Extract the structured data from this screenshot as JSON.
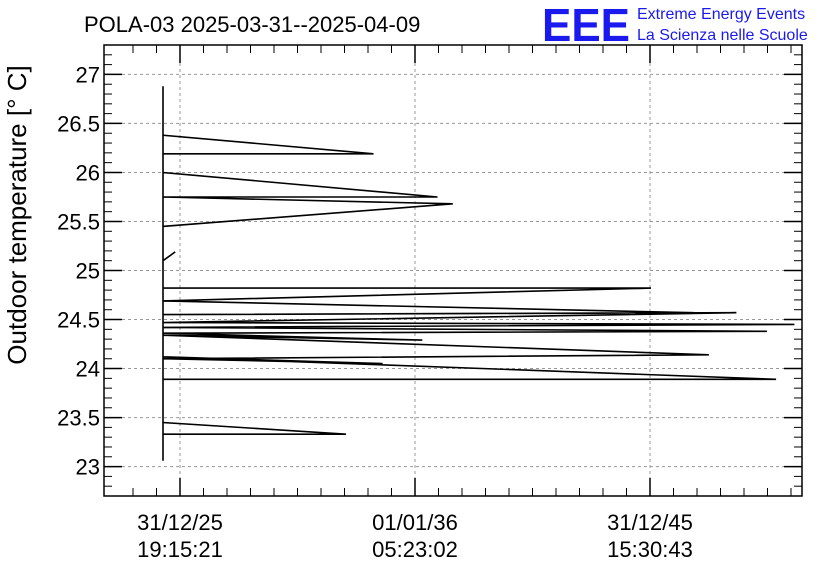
{
  "chart_data": {
    "type": "line",
    "title": "POLA-03 2025-03-31--2025-04-09",
    "ylabel": "Outdoor temperature [° C]",
    "xlabel": "",
    "ylim": [
      22.7,
      27.3
    ],
    "yticks": [
      23,
      23.5,
      24,
      24.5,
      25,
      25.5,
      26,
      26.5,
      27
    ],
    "ytick_labels": [
      "23",
      "23.5",
      "24",
      "24.5",
      "25",
      "25.5",
      "26",
      "26.5",
      "27"
    ],
    "xticks": [
      {
        "date": "31/12/25",
        "time": "19:15:21"
      },
      {
        "date": "01/01/36",
        "time": "05:23:02"
      },
      {
        "date": "31/12/45",
        "time": "15:30:43"
      }
    ],
    "grid": true,
    "series": [
      {
        "color": "#000000",
        "points": [
          [
            0.0,
            26.88
          ],
          [
            0.0,
            23.06
          ],
          [
            0.0,
            26.55
          ],
          [
            0.0,
            23.1
          ],
          [
            0.0,
            26.38
          ],
          [
            6.9,
            26.19
          ],
          [
            0.0,
            26.19
          ],
          [
            0.0,
            26.0
          ],
          [
            9.0,
            25.75
          ],
          [
            0.0,
            25.75
          ],
          [
            9.5,
            25.68
          ],
          [
            0.0,
            25.45
          ],
          [
            0.0,
            25.1
          ],
          [
            0.4,
            25.19
          ],
          [
            0.0,
            25.1
          ],
          [
            0.0,
            24.82
          ],
          [
            16.0,
            24.82
          ],
          [
            0.0,
            24.69
          ],
          [
            17.4,
            24.57
          ],
          [
            0.0,
            24.55
          ],
          [
            18.8,
            24.57
          ],
          [
            0.0,
            24.47
          ],
          [
            20.7,
            24.45
          ],
          [
            0.0,
            24.42
          ],
          [
            19.8,
            24.38
          ],
          [
            0.0,
            24.36
          ],
          [
            8.5,
            24.29
          ],
          [
            0.0,
            24.34
          ],
          [
            17.9,
            24.14
          ],
          [
            0.0,
            24.1
          ],
          [
            7.2,
            24.05
          ],
          [
            0.0,
            24.12
          ],
          [
            20.1,
            23.89
          ],
          [
            0.0,
            23.89
          ],
          [
            0.0,
            23.45
          ],
          [
            6.0,
            23.33
          ],
          [
            0.0,
            23.33
          ]
        ]
      }
    ]
  },
  "logo": {
    "mark": "EEE",
    "line1": "Extreme Energy Events",
    "line2": "La Scienza nelle Scuole",
    "color": "#1a1aee"
  }
}
